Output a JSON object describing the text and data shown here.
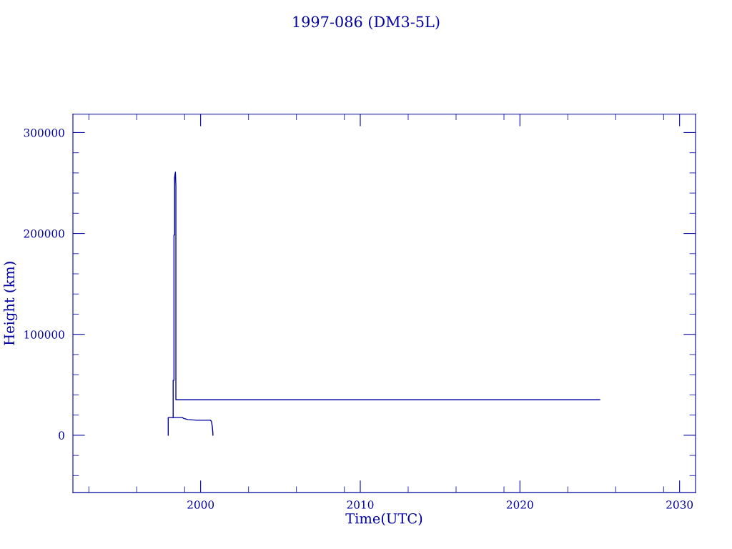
{
  "chart_data": {
    "type": "line",
    "title": "1997-086 (DM3-5L)",
    "xlabel": "Time(UTC)",
    "ylabel": "Height (km)",
    "xlim": [
      1992.0,
      2031.0
    ],
    "ylim": [
      -56700,
      318200
    ],
    "xticks": [
      {
        "value": 1993,
        "label": null
      },
      {
        "value": 1996,
        "label": null
      },
      {
        "value": 1999,
        "label": null
      },
      2000,
      {
        "value": 2003,
        "label": null
      },
      {
        "value": 2006,
        "label": null
      },
      {
        "value": 2009,
        "label": null
      },
      2010,
      {
        "value": 2013,
        "label": null
      },
      {
        "value": 2016,
        "label": null
      },
      {
        "value": 2019,
        "label": null
      },
      2020,
      {
        "value": 2023,
        "label": null
      },
      {
        "value": 2026,
        "label": null
      },
      {
        "value": 2029,
        "label": null
      },
      2030
    ],
    "yticks": [
      {
        "value": -40000,
        "label": null
      },
      {
        "value": -20000,
        "label": null
      },
      0,
      {
        "value": 20000,
        "label": null
      },
      {
        "value": 40000,
        "label": null
      },
      {
        "value": 60000,
        "label": null
      },
      {
        "value": 80000,
        "label": null
      },
      100000,
      {
        "value": 120000,
        "label": null
      },
      {
        "value": 140000,
        "label": null
      },
      {
        "value": 160000,
        "label": null
      },
      {
        "value": 180000,
        "label": null
      },
      200000,
      {
        "value": 220000,
        "label": null
      },
      {
        "value": 240000,
        "label": null
      },
      {
        "value": 260000,
        "label": null
      },
      {
        "value": 280000,
        "label": null
      },
      300000
    ],
    "grid": false,
    "legend": false,
    "marker": "none",
    "line_style": "solid",
    "series": [
      {
        "color": "#0000a0",
        "x": [
          1997.97,
          1997.97,
          1998.85,
          1998.95,
          1999.19,
          1999.76,
          2000.61,
          2000.68,
          2000.73,
          2000.77,
          2000.77
        ],
        "values": [
          0,
          17500,
          17500,
          16600,
          15600,
          14900,
          14900,
          13700,
          8700,
          1600,
          0
        ]
      },
      {
        "color": "#0000a0",
        "x": [
          1998.28,
          1998.28,
          1998.33,
          1998.33,
          1998.37,
          1998.37,
          1998.42,
          1998.45,
          1998.45,
          2025.0
        ],
        "values": [
          17500,
          54400,
          54400,
          198400,
          198400,
          255600,
          260800,
          247300,
          35200,
          35200
        ]
      }
    ]
  }
}
